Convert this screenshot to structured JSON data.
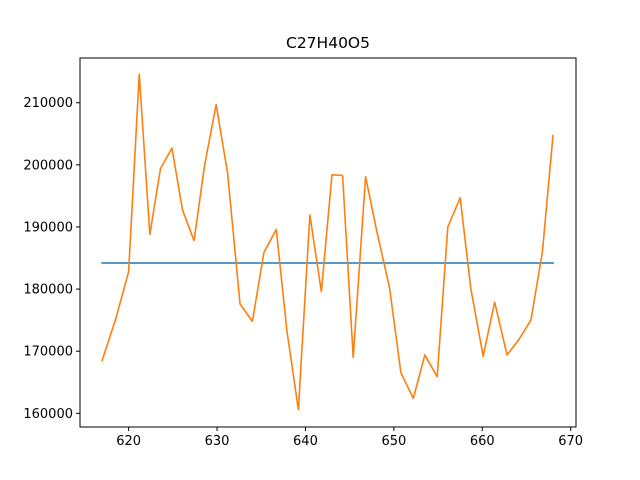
{
  "chart_data": {
    "type": "line",
    "title": "C27H40O5",
    "xlabel": "",
    "ylabel": "",
    "xlim": [
      614.5,
      670.6
    ],
    "ylim": [
      157800,
      217200
    ],
    "xticks": [
      620,
      630,
      640,
      650,
      660,
      670
    ],
    "yticks": [
      160000,
      170000,
      180000,
      190000,
      200000,
      210000
    ],
    "xtick_labels": [
      "620",
      "630",
      "640",
      "650",
      "660",
      "670"
    ],
    "ytick_labels": [
      "160000",
      "170000",
      "180000",
      "190000",
      "200000",
      "210000"
    ],
    "grid": false,
    "series": [
      {
        "color": "#1f77b4",
        "x": [
          617.0,
          668.0
        ],
        "y": [
          184200,
          184200
        ]
      },
      {
        "color": "#ff7f0e",
        "x": [
          617.0,
          618.5,
          620.0,
          621.2,
          622.4,
          623.6,
          624.9,
          626.1,
          627.4,
          628.6,
          629.9,
          631.2,
          632.6,
          634.0,
          635.3,
          636.7,
          637.9,
          639.2,
          640.5,
          641.8,
          643.0,
          644.2,
          645.4,
          646.8,
          648.1,
          649.5,
          650.8,
          652.2,
          653.5,
          654.9,
          656.1,
          657.5,
          658.7,
          660.1,
          661.4,
          662.8,
          664.1,
          665.5,
          666.8,
          668.0
        ],
        "y": [
          168500,
          175000,
          182800,
          214600,
          188800,
          199400,
          202700,
          192700,
          187800,
          200000,
          209700,
          198600,
          177600,
          174800,
          185900,
          189600,
          173300,
          160600,
          191900,
          179600,
          198400,
          198300,
          169000,
          198100,
          189100,
          180300,
          166500,
          162400,
          169400,
          165900,
          190000,
          194700,
          180100,
          169200,
          177900,
          169400,
          171800,
          175000,
          186000,
          204700
        ]
      }
    ]
  }
}
